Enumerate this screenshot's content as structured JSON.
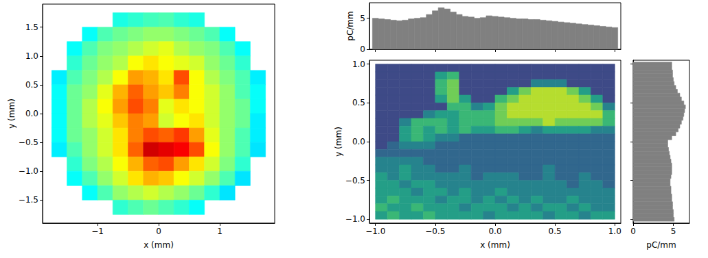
{
  "chart_data": [
    {
      "type": "heatmap",
      "xlabel": "x (mm)",
      "ylabel": "y (mm)",
      "x": [
        -1.625,
        -1.375,
        -1.125,
        -0.875,
        -0.625,
        -0.375,
        -0.125,
        0.125,
        0.375,
        0.625,
        0.875,
        1.125,
        1.375,
        1.625
      ],
      "y": [
        1.625,
        1.375,
        1.125,
        0.875,
        0.625,
        0.375,
        0.125,
        -0.125,
        -0.375,
        -0.625,
        -0.875,
        -1.125,
        -1.375,
        -1.625
      ],
      "cells": [
        [
          null,
          null,
          null,
          null,
          40,
          42,
          44,
          45,
          42,
          40,
          null,
          null,
          null,
          null
        ],
        [
          null,
          null,
          38,
          45,
          48,
          50,
          52,
          52,
          50,
          48,
          45,
          38,
          null,
          null
        ],
        [
          null,
          38,
          45,
          50,
          52,
          55,
          58,
          60,
          55,
          52,
          50,
          45,
          38,
          null
        ],
        [
          null,
          42,
          48,
          52,
          55,
          62,
          65,
          62,
          60,
          58,
          52,
          48,
          42,
          null
        ],
        [
          36,
          45,
          50,
          55,
          62,
          72,
          70,
          65,
          80,
          62,
          55,
          50,
          45,
          36
        ],
        [
          38,
          48,
          52,
          60,
          70,
          78,
          72,
          68,
          75,
          62,
          58,
          52,
          45,
          38
        ],
        [
          38,
          48,
          55,
          62,
          72,
          80,
          75,
          60,
          65,
          62,
          58,
          52,
          48,
          38
        ],
        [
          38,
          48,
          55,
          60,
          68,
          75,
          72,
          58,
          62,
          65,
          58,
          52,
          48,
          36
        ],
        [
          38,
          48,
          52,
          58,
          65,
          75,
          80,
          78,
          82,
          72,
          60,
          52,
          45,
          36
        ],
        [
          36,
          45,
          52,
          58,
          65,
          78,
          92,
          90,
          88,
          80,
          62,
          52,
          45,
          35
        ],
        [
          null,
          42,
          50,
          55,
          62,
          70,
          78,
          80,
          72,
          65,
          58,
          50,
          42,
          null
        ],
        [
          null,
          38,
          45,
          52,
          58,
          65,
          70,
          68,
          62,
          58,
          52,
          45,
          35,
          null
        ],
        [
          null,
          null,
          38,
          45,
          52,
          55,
          58,
          55,
          52,
          48,
          42,
          35,
          null,
          null
        ],
        [
          null,
          null,
          null,
          null,
          42,
          45,
          48,
          45,
          42,
          38,
          null,
          null,
          null,
          null
        ]
      ],
      "color_range": [
        0,
        100
      ],
      "xlim": [
        -1.9,
        1.9
      ],
      "ylim": [
        -1.9,
        1.9
      ],
      "xticks": [
        {
          "value": -1,
          "label": "−1"
        },
        0,
        1
      ],
      "yticks": [
        {
          "value": -1.5,
          "label": "−1.5"
        },
        {
          "value": -1,
          "label": "−1.0"
        },
        {
          "value": -0.5,
          "label": "−0.5"
        },
        {
          "value": 0,
          "label": "0.0"
        },
        0.5,
        {
          "value": 1,
          "label": "1.0"
        },
        1.5
      ]
    },
    {
      "type": "heatmap",
      "xlabel": "x (mm)",
      "ylabel": "y (mm)",
      "x": [
        -0.95,
        -0.85,
        -0.75,
        -0.65,
        -0.55,
        -0.45,
        -0.35,
        -0.25,
        -0.15,
        -0.05,
        0.05,
        0.15,
        0.25,
        0.35,
        0.45,
        0.55,
        0.65,
        0.75,
        0.85,
        0.95
      ],
      "y": [
        0.95,
        0.85,
        0.75,
        0.65,
        0.55,
        0.45,
        0.35,
        0.25,
        0.15,
        0.05,
        -0.05,
        -0.15,
        -0.25,
        -0.35,
        -0.45,
        -0.55,
        -0.65,
        -0.75,
        -0.85,
        -0.95
      ],
      "cells": [
        [
          2,
          2,
          2,
          2,
          2,
          2,
          2,
          2,
          2,
          2,
          2,
          2,
          2,
          2,
          2,
          2,
          2,
          2,
          2,
          2
        ],
        [
          2,
          2,
          2,
          2,
          2,
          5,
          6,
          2,
          2,
          2,
          2,
          2,
          2,
          2,
          2,
          2,
          2,
          2,
          2,
          2
        ],
        [
          2,
          2,
          2,
          2,
          2,
          6,
          7,
          2,
          2,
          2,
          2,
          2,
          2,
          4,
          4,
          4,
          2,
          2,
          2,
          2
        ],
        [
          2,
          2,
          2,
          2,
          2,
          6,
          7,
          2,
          2,
          2,
          2,
          5,
          7,
          8,
          8,
          8,
          7,
          5,
          2,
          2
        ],
        [
          2,
          2,
          2,
          2,
          2,
          5,
          7,
          5,
          2,
          2,
          6,
          7,
          8,
          8,
          8,
          8,
          8,
          7,
          5,
          2
        ],
        [
          2,
          2,
          2,
          2,
          2,
          2,
          6,
          6,
          4,
          5,
          7,
          8,
          8,
          8,
          8,
          8,
          8,
          8,
          7,
          4
        ],
        [
          2,
          2,
          2,
          2,
          4,
          5,
          5,
          6,
          6,
          6,
          7,
          8,
          8,
          8,
          8,
          8,
          8,
          8,
          8,
          6
        ],
        [
          2,
          2,
          4,
          6,
          6,
          6,
          5,
          6,
          6,
          6,
          7,
          7,
          7,
          7,
          8,
          7,
          7,
          7,
          7,
          6
        ],
        [
          2,
          2,
          5,
          6,
          5,
          6,
          5,
          6,
          5,
          5,
          6,
          6,
          5,
          4,
          5,
          5,
          5,
          5,
          4,
          4
        ],
        [
          2,
          2,
          5,
          6,
          5,
          4,
          4,
          3,
          3,
          3,
          3,
          3,
          3,
          3,
          3,
          3,
          3,
          3,
          3,
          3
        ],
        [
          2,
          3,
          4,
          4,
          4,
          3,
          3,
          3,
          3,
          3,
          3,
          3,
          3,
          3,
          3,
          3,
          3,
          3,
          3,
          3
        ],
        [
          3,
          3,
          3,
          3,
          3,
          3,
          3,
          3,
          3,
          3,
          3,
          3,
          3,
          3,
          3,
          3,
          3,
          3,
          3,
          3
        ],
        [
          4,
          4,
          4,
          4,
          3,
          3,
          3,
          3,
          3,
          3,
          3,
          3,
          3,
          3,
          3,
          3,
          3,
          3,
          3,
          3
        ],
        [
          4,
          4,
          5,
          4,
          4,
          3,
          3,
          4,
          3,
          3,
          3,
          3,
          3,
          3,
          4,
          3,
          3,
          3,
          3,
          3
        ],
        [
          5,
          4,
          5,
          4,
          4,
          4,
          4,
          4,
          3,
          4,
          4,
          4,
          3,
          3,
          4,
          3,
          3,
          4,
          3,
          3
        ],
        [
          5,
          5,
          4,
          5,
          5,
          4,
          4,
          4,
          4,
          4,
          4,
          4,
          4,
          4,
          4,
          4,
          3,
          4,
          4,
          3
        ],
        [
          5,
          5,
          5,
          4,
          5,
          5,
          4,
          5,
          4,
          4,
          5,
          4,
          4,
          4,
          4,
          4,
          4,
          4,
          4,
          4
        ],
        [
          5,
          6,
          5,
          5,
          5,
          4,
          5,
          5,
          4,
          5,
          4,
          5,
          4,
          5,
          4,
          4,
          5,
          4,
          4,
          4
        ],
        [
          6,
          5,
          5,
          6,
          5,
          5,
          5,
          4,
          5,
          5,
          5,
          4,
          5,
          4,
          5,
          5,
          4,
          5,
          4,
          4
        ],
        [
          5,
          6,
          5,
          5,
          6,
          5,
          5,
          5,
          5,
          4,
          5,
          5,
          5,
          5,
          4,
          5,
          5,
          4,
          5,
          5
        ]
      ],
      "color_range": [
        0,
        9
      ],
      "xlim": [
        -1.05,
        1.05
      ],
      "ylim": [
        -1.05,
        1.05
      ],
      "xticks": [
        {
          "value": -1,
          "label": "−1.0"
        },
        {
          "value": -0.5,
          "label": "−0.5"
        },
        {
          "value": 0,
          "label": "0.0"
        },
        0.5,
        {
          "value": 1,
          "label": "1.0"
        }
      ],
      "yticks": [
        {
          "value": -1,
          "label": "−1.0"
        },
        {
          "value": -0.5,
          "label": "−0.5"
        },
        {
          "value": 0,
          "label": "0.0"
        },
        0.5,
        {
          "value": 1,
          "label": "1.0"
        }
      ]
    },
    {
      "type": "bar",
      "ylabel": "pC/mm",
      "color": "#808080",
      "x": [
        -1,
        -0.95,
        -0.9,
        -0.85,
        -0.8,
        -0.75,
        -0.7,
        -0.65,
        -0.6,
        -0.55,
        -0.5,
        -0.45,
        -0.4,
        -0.35,
        -0.3,
        -0.25,
        -0.2,
        -0.15,
        -0.1,
        -0.05,
        0,
        0.05,
        0.1,
        0.15,
        0.2,
        0.25,
        0.3,
        0.35,
        0.4,
        0.45,
        0.5,
        0.55,
        0.6,
        0.65,
        0.7,
        0.75,
        0.8,
        0.85,
        0.9,
        0.95,
        1
      ],
      "values": [
        5.0,
        4.9,
        4.8,
        4.7,
        4.6,
        4.7,
        4.9,
        5.0,
        5.1,
        5.6,
        6.2,
        6.7,
        6.5,
        6.0,
        5.6,
        5.3,
        5.2,
        5.0,
        5.1,
        5.4,
        5.3,
        5.2,
        5.1,
        5.0,
        4.9,
        4.9,
        4.8,
        4.8,
        4.7,
        4.6,
        4.5,
        4.4,
        4.3,
        4.2,
        4.1,
        4.0,
        3.9,
        3.8,
        3.7,
        3.6,
        3.5
      ],
      "xlim": [
        -1.05,
        1.05
      ],
      "ylim": [
        0,
        7.5
      ],
      "xticks": [
        -1,
        -0.5,
        0,
        0.5,
        1
      ],
      "yticks": [
        0,
        5
      ],
      "tick_labels": "y"
    },
    {
      "type": "bar",
      "orientation": "horizontal",
      "xlabel": "pC/mm",
      "color": "#808080",
      "y": [
        -1,
        -0.95,
        -0.9,
        -0.85,
        -0.8,
        -0.75,
        -0.7,
        -0.65,
        -0.6,
        -0.55,
        -0.5,
        -0.45,
        -0.4,
        -0.35,
        -0.3,
        -0.25,
        -0.2,
        -0.15,
        -0.1,
        -0.05,
        0,
        0.05,
        0.1,
        0.15,
        0.2,
        0.25,
        0.3,
        0.35,
        0.4,
        0.45,
        0.5,
        0.55,
        0.6,
        0.65,
        0.7,
        0.75,
        0.8,
        0.85,
        0.9,
        0.95,
        1
      ],
      "values": [
        5.1,
        5.0,
        5.0,
        4.9,
        4.9,
        4.8,
        4.8,
        4.7,
        4.7,
        4.6,
        4.6,
        4.7,
        4.8,
        4.8,
        4.8,
        4.7,
        4.6,
        4.5,
        4.4,
        4.3,
        4.3,
        4.8,
        5.3,
        5.6,
        5.8,
        6.0,
        6.2,
        6.3,
        6.4,
        6.5,
        6.3,
        6.0,
        5.8,
        5.5,
        5.3,
        5.1,
        5.0,
        4.9,
        4.9,
        4.8,
        4.8
      ],
      "xlim": [
        0,
        7
      ],
      "ylim": [
        -1.05,
        1.05
      ],
      "xticks": [
        0,
        5
      ],
      "yticks": [
        -1,
        -0.5,
        0,
        0.5,
        1
      ],
      "tick_labels": "x"
    }
  ]
}
